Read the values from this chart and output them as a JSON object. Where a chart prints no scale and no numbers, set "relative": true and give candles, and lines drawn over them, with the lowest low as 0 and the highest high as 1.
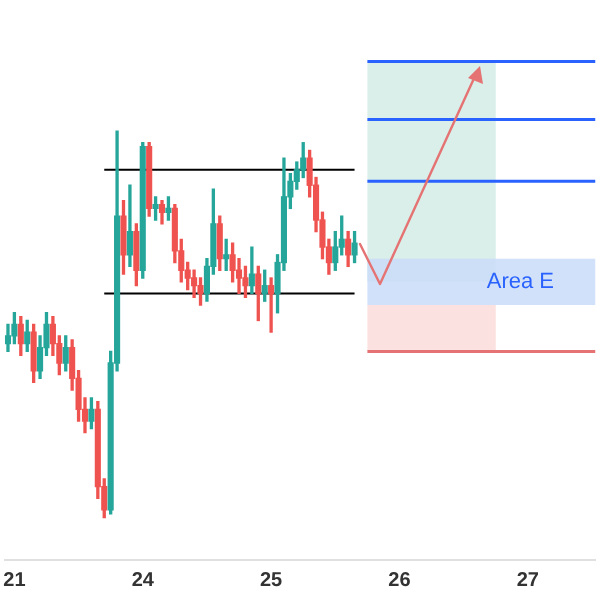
{
  "chart_data": {
    "type": "candlestick",
    "relative": true,
    "categories": [
      null,
      "21",
      null,
      null,
      null,
      null,
      null,
      null,
      null,
      null,
      null,
      null,
      null,
      null,
      null,
      null,
      null,
      null,
      null,
      null,
      null,
      "24",
      null,
      null,
      null,
      null,
      null,
      null,
      null,
      null,
      null,
      null,
      null,
      null,
      null,
      null,
      null,
      null,
      null,
      null,
      null,
      "25",
      null,
      null,
      null,
      null,
      null,
      null,
      null,
      null,
      null,
      null,
      null,
      null,
      null,
      null,
      null,
      null,
      null,
      null,
      null,
      "26",
      null,
      null,
      null,
      null,
      null,
      null,
      null,
      null,
      null,
      null,
      null,
      null,
      null,
      null,
      null,
      null,
      null,
      null,
      null,
      "27",
      null,
      null,
      null,
      null,
      null,
      null,
      null,
      null,
      null,
      null
    ],
    "ohlc": [
      [
        0.45,
        0.5,
        0.43,
        0.47
      ],
      [
        0.47,
        0.53,
        0.45,
        0.5
      ],
      [
        0.5,
        0.52,
        0.42,
        0.45
      ],
      [
        0.45,
        0.51,
        0.43,
        0.48
      ],
      [
        0.48,
        0.5,
        0.35,
        0.38
      ],
      [
        0.38,
        0.47,
        0.36,
        0.44
      ],
      [
        0.44,
        0.53,
        0.42,
        0.5
      ],
      [
        0.5,
        0.52,
        0.42,
        0.45
      ],
      [
        0.45,
        0.47,
        0.37,
        0.4
      ],
      [
        0.4,
        0.47,
        0.38,
        0.44
      ],
      [
        0.44,
        0.46,
        0.33,
        0.36
      ],
      [
        0.36,
        0.38,
        0.25,
        0.28
      ],
      [
        0.28,
        0.31,
        0.22,
        0.25
      ],
      [
        0.25,
        0.31,
        0.23,
        0.28
      ],
      [
        0.28,
        0.3,
        0.05,
        0.08
      ],
      [
        0.08,
        0.1,
        0.0,
        0.02
      ],
      [
        0.02,
        0.43,
        0.01,
        0.4
      ],
      [
        0.4,
        1.0,
        0.38,
        0.78
      ],
      [
        0.78,
        0.82,
        0.63,
        0.68
      ],
      [
        0.68,
        0.86,
        0.65,
        0.74
      ],
      [
        0.74,
        0.76,
        0.6,
        0.64
      ],
      [
        0.64,
        0.97,
        0.62,
        0.96
      ],
      [
        0.96,
        0.97,
        0.78,
        0.8
      ],
      [
        0.8,
        0.83,
        0.77,
        0.81
      ],
      [
        0.81,
        0.82,
        0.76,
        0.79
      ],
      [
        0.79,
        0.83,
        0.77,
        0.8
      ],
      [
        0.8,
        0.81,
        0.66,
        0.69
      ],
      [
        0.69,
        0.72,
        0.61,
        0.64
      ],
      [
        0.64,
        0.66,
        0.59,
        0.62
      ],
      [
        0.62,
        0.64,
        0.57,
        0.6
      ],
      [
        0.6,
        0.62,
        0.55,
        0.58
      ],
      [
        0.58,
        0.67,
        0.56,
        0.65
      ],
      [
        0.65,
        0.85,
        0.63,
        0.76
      ],
      [
        0.76,
        0.78,
        0.64,
        0.67
      ],
      [
        0.67,
        0.72,
        0.64,
        0.68
      ],
      [
        0.68,
        0.71,
        0.61,
        0.64
      ],
      [
        0.64,
        0.67,
        0.58,
        0.62
      ],
      [
        0.62,
        0.65,
        0.57,
        0.6
      ],
      [
        0.6,
        0.7,
        0.58,
        0.63
      ],
      [
        0.63,
        0.65,
        0.51,
        0.58
      ],
      [
        0.58,
        0.64,
        0.56,
        0.6
      ],
      [
        0.6,
        0.62,
        0.48,
        0.58
      ],
      [
        0.58,
        0.68,
        0.53,
        0.66
      ],
      [
        0.66,
        0.93,
        0.64,
        0.83
      ],
      [
        0.83,
        0.89,
        0.8,
        0.87
      ],
      [
        0.87,
        0.92,
        0.85,
        0.9
      ],
      [
        0.9,
        0.97,
        0.88,
        0.93
      ],
      [
        0.93,
        0.95,
        0.83,
        0.86
      ],
      [
        0.86,
        0.88,
        0.74,
        0.77
      ],
      [
        0.77,
        0.79,
        0.67,
        0.7
      ],
      [
        0.7,
        0.72,
        0.63,
        0.66
      ],
      [
        0.66,
        0.74,
        0.64,
        0.7
      ],
      [
        0.7,
        0.78,
        0.68,
        0.72
      ],
      [
        0.72,
        0.74,
        0.65,
        0.68
      ],
      [
        0.68,
        0.74,
        0.66,
        0.71
      ],
      null,
      null,
      null,
      null,
      null,
      null,
      null,
      null,
      null,
      null,
      null,
      null,
      null,
      null,
      null,
      null,
      null,
      null,
      null,
      null,
      null,
      null,
      null,
      null,
      null,
      null,
      null,
      null,
      null,
      null,
      null,
      null,
      null,
      null,
      null,
      null,
      null
    ],
    "ref_lines": [
      {
        "axis": "y",
        "value": 0.9,
        "color": "#000000"
      },
      {
        "axis": "y",
        "value": 0.58,
        "color": "#000000"
      },
      {
        "axis": "y",
        "value": 1.18,
        "color": "#2962ff"
      },
      {
        "axis": "y",
        "value": 1.03,
        "color": "#2962ff"
      },
      {
        "axis": "y",
        "value": 0.87,
        "color": "#2962ff"
      },
      {
        "axis": "y",
        "value": 0.43,
        "color": "#e57373"
      }
    ],
    "bands": [
      {
        "axis": "y",
        "from": 0.61,
        "to": 1.18,
        "color": "#d4ece6"
      },
      {
        "axis": "y",
        "from": 0.43,
        "to": 0.55,
        "color": "#fcdcdc"
      },
      {
        "axis": "y",
        "from": 0.55,
        "to": 0.67,
        "color": "#c9dcf8",
        "label": "Area E"
      }
    ],
    "grid": false
  }
}
